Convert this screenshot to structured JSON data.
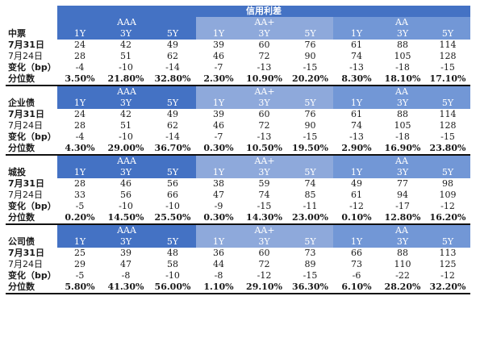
{
  "title": "信用利差",
  "sections": [
    {
      "name": "中票",
      "ratings": [
        "AAA",
        "AA+",
        "AA"
      ],
      "tenors": [
        "1Y",
        "3Y",
        "5Y",
        "1Y",
        "3Y",
        "5Y",
        "1Y",
        "3Y",
        "5Y"
      ],
      "rows": [
        {
          "label": "7月31日",
          "values": [
            "24",
            "42",
            "49",
            "39",
            "60",
            "76",
            "61",
            "88",
            "114"
          ]
        },
        {
          "label": "7月24日",
          "values": [
            "28",
            "51",
            "62",
            "46",
            "72",
            "90",
            "74",
            "105",
            "128"
          ]
        },
        {
          "label": "变化（bp）",
          "values": [
            "-4",
            "-10",
            "-14",
            "-7",
            "-13",
            "-15",
            "-13",
            "-18",
            "-15"
          ]
        },
        {
          "label": "分位数",
          "values": [
            "3.50%",
            "21.80%",
            "32.80%",
            "2.30%",
            "10.90%",
            "20.20%",
            "8.30%",
            "18.10%",
            "17.10%"
          ]
        }
      ]
    },
    {
      "name": "企业债",
      "ratings": [
        "AAA",
        "AA+",
        "AA"
      ],
      "tenors": [
        "1Y",
        "3Y",
        "5Y",
        "1Y",
        "3Y",
        "5Y",
        "1Y",
        "3Y",
        "5Y"
      ],
      "rows": [
        {
          "label": "7月31日",
          "values": [
            "24",
            "42",
            "49",
            "39",
            "60",
            "76",
            "61",
            "88",
            "114"
          ]
        },
        {
          "label": "7月24日",
          "values": [
            "28",
            "51",
            "62",
            "46",
            "72",
            "90",
            "74",
            "105",
            "128"
          ]
        },
        {
          "label": "变化（bp）",
          "values": [
            "-4",
            "-10",
            "-14",
            "-7",
            "-13",
            "-15",
            "-13",
            "-18",
            "-15"
          ]
        },
        {
          "label": "分位数",
          "values": [
            "4.30%",
            "29.00%",
            "36.70%",
            "0.30%",
            "10.50%",
            "19.50%",
            "2.90%",
            "16.90%",
            "23.80%"
          ]
        }
      ]
    },
    {
      "name": "城投",
      "ratings": [
        "AAA",
        "AA+",
        "AA"
      ],
      "tenors": [
        "1Y",
        "3Y",
        "5Y",
        "1Y",
        "3Y",
        "5Y",
        "1Y",
        "3Y",
        "5Y"
      ],
      "rows": [
        {
          "label": "7月31日",
          "values": [
            "28",
            "46",
            "56",
            "38",
            "59",
            "74",
            "49",
            "77",
            "98"
          ]
        },
        {
          "label": "7月24日",
          "values": [
            "33",
            "56",
            "66",
            "47",
            "74",
            "85",
            "61",
            "94",
            "109"
          ]
        },
        {
          "label": "变化（bp）",
          "values": [
            "-5",
            "-10",
            "-10",
            "-9",
            "-15",
            "-11",
            "-12",
            "-17",
            "-12"
          ]
        },
        {
          "label": "分位数",
          "values": [
            "0.20%",
            "14.50%",
            "25.50%",
            "0.30%",
            "14.30%",
            "23.00%",
            "0.10%",
            "12.80%",
            "16.20%"
          ]
        }
      ]
    },
    {
      "name": "公司债",
      "ratings": [
        "AAA",
        "AA+",
        "AA"
      ],
      "tenors": [
        "1Y",
        "3Y",
        "5Y",
        "1Y",
        "3Y",
        "5Y",
        "1Y",
        "3Y",
        "5Y"
      ],
      "rows": [
        {
          "label": "7月31日",
          "values": [
            "25",
            "39",
            "48",
            "36",
            "60",
            "73",
            "66",
            "88",
            "113"
          ]
        },
        {
          "label": "7月24日",
          "values": [
            "29",
            "47",
            "58",
            "44",
            "72",
            "89",
            "73",
            "110",
            "125"
          ]
        },
        {
          "label": "变化（bp）",
          "values": [
            "-5",
            "-8",
            "-10",
            "-8",
            "-12",
            "-15",
            "-6",
            "-22",
            "-12"
          ]
        },
        {
          "label": "分位数",
          "values": [
            "5.80%",
            "41.30%",
            "56.00%",
            "1.10%",
            "29.10%",
            "36.30%",
            "6.10%",
            "28.20%",
            "32.20%"
          ]
        }
      ]
    }
  ]
}
